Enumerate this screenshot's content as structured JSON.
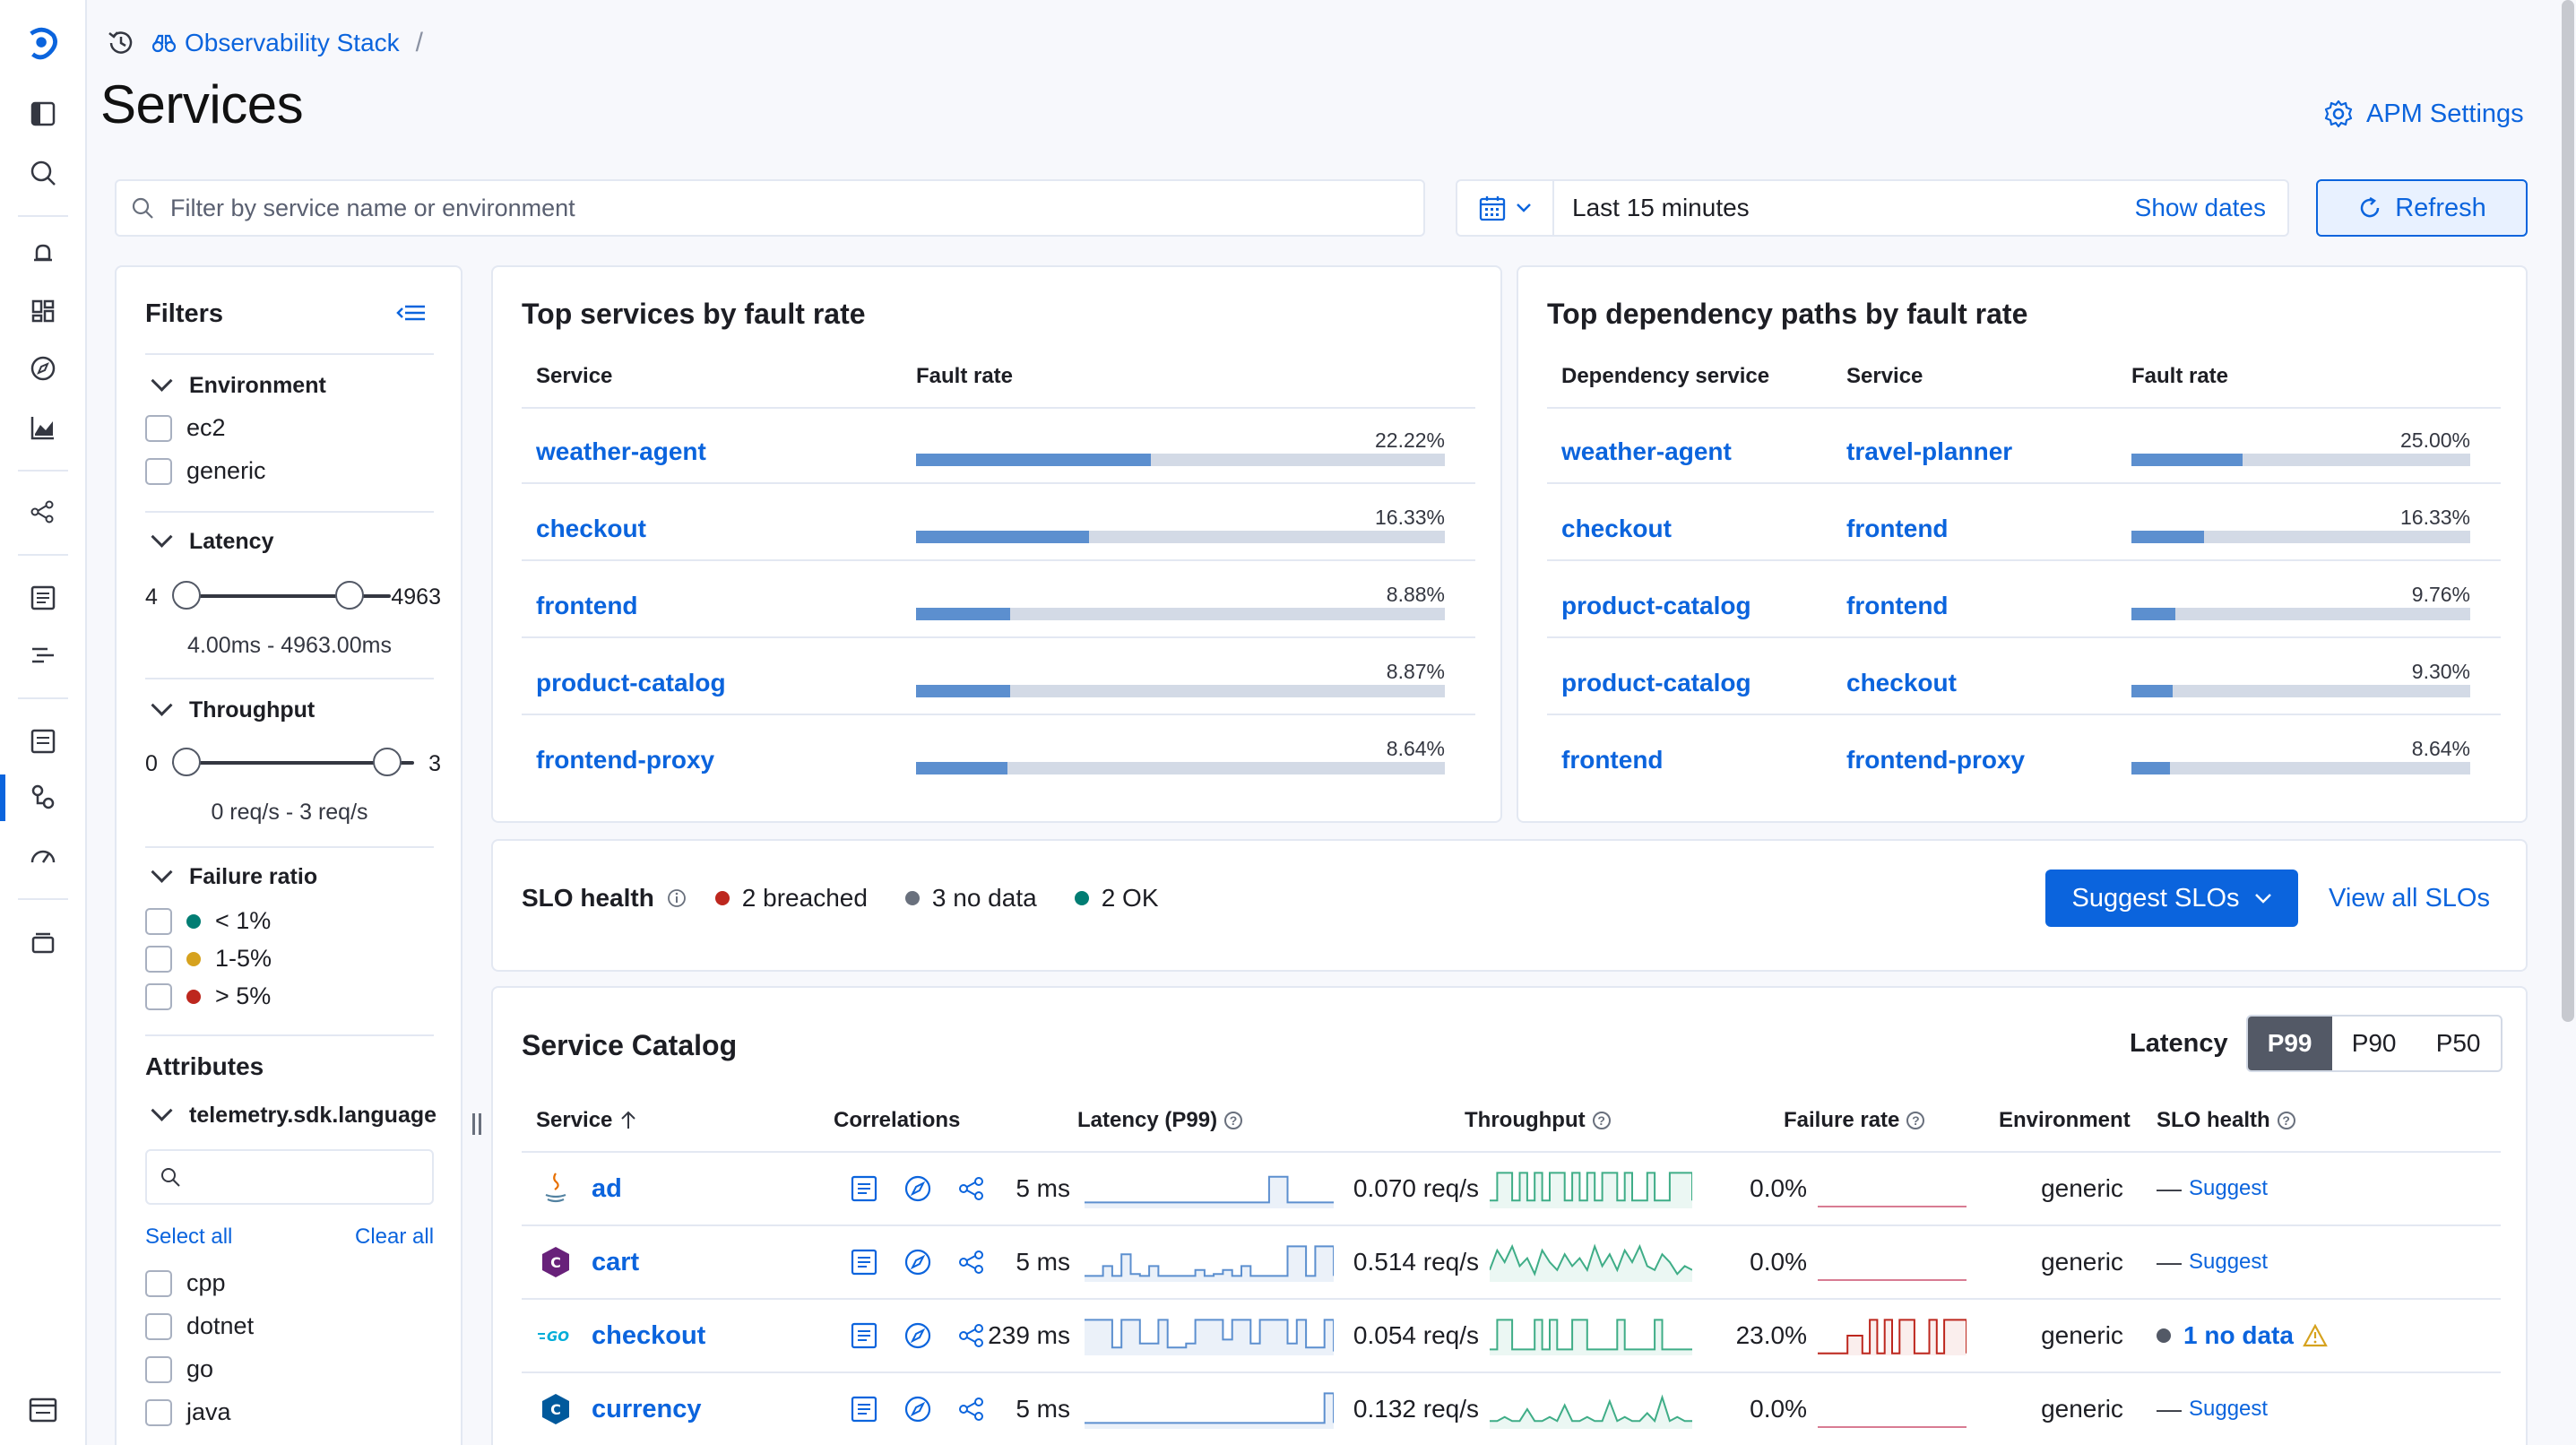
{
  "breadcrumb": {
    "workspace": "Observability Stack"
  },
  "page_title": "Services",
  "apm_settings": "APM Settings",
  "search": {
    "placeholder": "Filter by service name or environment"
  },
  "time": {
    "range": "Last 15 minutes",
    "show_dates": "Show dates",
    "refresh": "Refresh"
  },
  "filters": {
    "title": "Filters",
    "environment": {
      "title": "Environment",
      "options": [
        "ec2",
        "generic"
      ]
    },
    "latency": {
      "title": "Latency",
      "min": "4",
      "max": "4963",
      "caption": "4.00ms - 4963.00ms"
    },
    "throughput": {
      "title": "Throughput",
      "min": "0",
      "max": "3",
      "caption": "0 req/s - 3 req/s"
    },
    "failure_ratio": {
      "title": "Failure ratio",
      "options": [
        "< 1%",
        "1-5%",
        "> 5%"
      ]
    },
    "attributes": {
      "title": "Attributes",
      "field": "telemetry.sdk.language",
      "select_all": "Select all",
      "clear_all": "Clear all",
      "options": [
        "cpp",
        "dotnet",
        "go",
        "java"
      ]
    }
  },
  "top_services": {
    "title": "Top services by fault rate",
    "headers": [
      "Service",
      "Fault rate"
    ],
    "rows": [
      {
        "service": "weather-agent",
        "rate": "22.22%",
        "value": 22.22
      },
      {
        "service": "checkout",
        "rate": "16.33%",
        "value": 16.33
      },
      {
        "service": "frontend",
        "rate": "8.88%",
        "value": 8.88
      },
      {
        "service": "product-catalog",
        "rate": "8.87%",
        "value": 8.87
      },
      {
        "service": "frontend-proxy",
        "rate": "8.64%",
        "value": 8.64
      }
    ]
  },
  "top_dependencies": {
    "title": "Top dependency paths by fault rate",
    "headers": [
      "Dependency service",
      "Service",
      "Fault rate"
    ],
    "rows": [
      {
        "dependency": "weather-agent",
        "service": "travel-planner",
        "rate": "25.00%",
        "value": 25.0
      },
      {
        "dependency": "checkout",
        "service": "frontend",
        "rate": "16.33%",
        "value": 16.33
      },
      {
        "dependency": "product-catalog",
        "service": "frontend",
        "rate": "9.76%",
        "value": 9.76
      },
      {
        "dependency": "product-catalog",
        "service": "checkout",
        "rate": "9.30%",
        "value": 9.3
      },
      {
        "dependency": "frontend",
        "service": "frontend-proxy",
        "rate": "8.64%",
        "value": 8.64
      }
    ]
  },
  "slo_health": {
    "label": "SLO health",
    "breached": "2 breached",
    "no_data": "3 no data",
    "ok": "2 OK",
    "suggest_button": "Suggest SLOs",
    "view_all": "View all SLOs"
  },
  "catalog": {
    "title": "Service Catalog",
    "latency_label": "Latency",
    "latency_options": [
      "P99",
      "P90",
      "P50"
    ],
    "headers": {
      "service": "Service",
      "correlations": "Correlations",
      "latency": "Latency (P99)",
      "throughput": "Throughput",
      "failure": "Failure rate",
      "environment": "Environment",
      "slo": "SLO health"
    },
    "rows": [
      {
        "name": "ad",
        "icon": "java-icon",
        "latency": "5 ms",
        "throughput": "0.070 req/s",
        "failure": "0.0%",
        "environment": "generic",
        "slo": "Suggest"
      },
      {
        "name": "cart",
        "icon": "csharp-icon",
        "latency": "5 ms",
        "throughput": "0.514 req/s",
        "failure": "0.0%",
        "environment": "generic",
        "slo": "Suggest"
      },
      {
        "name": "checkout",
        "icon": "go-icon",
        "latency": "239 ms",
        "throughput": "0.054 req/s",
        "failure": "23.0%",
        "environment": "generic",
        "slo": "1 no data"
      },
      {
        "name": "currency",
        "icon": "cpp-icon",
        "latency": "5 ms",
        "throughput": "0.132 req/s",
        "failure": "0.0%",
        "environment": "generic",
        "slo": "Suggest"
      }
    ]
  },
  "colors": {
    "accent": "#0b64dd",
    "bar": "#5c8fcf",
    "breached": "#bd271e",
    "no_data": "#69707d",
    "ok": "#017d73",
    "warning": "#d6a21e"
  }
}
